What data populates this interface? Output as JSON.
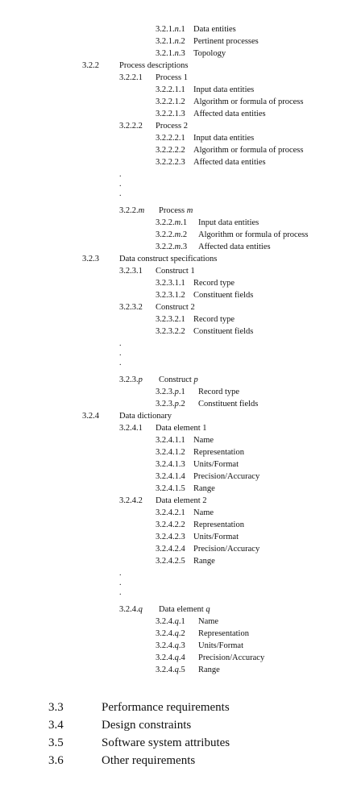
{
  "rows": [
    {
      "num": "3.2.1.n.1",
      "text": "Data entities"
    },
    {
      "num": "3.2.1.n.2",
      "text": "Pertinent processes"
    },
    {
      "num": "3.2.1.n.3",
      "text": "Topology"
    },
    {
      "num": "3.2.2",
      "text": "Process descriptions"
    },
    {
      "num": "3.2.2.1",
      "text": "Process 1"
    },
    {
      "num": "3.2.2.1.1",
      "text": "Input data entities"
    },
    {
      "num": "3.2.2.1.2",
      "text": "Algorithm or formula of process"
    },
    {
      "num": "3.2.2.1.3",
      "text": "Affected data entities"
    },
    {
      "num": "3.2.2.2",
      "text": "Process 2"
    },
    {
      "num": "3.2.2.2.1",
      "text": "Input data entities"
    },
    {
      "num": "3.2.2.2.2",
      "text": "Algorithm or formula of process"
    },
    {
      "num": "3.2.2.2.3",
      "text": "Affected data entities"
    },
    {
      "num": "3.2.2.m",
      "text": "Process m"
    },
    {
      "num": "3.2.2.m.1",
      "text": "Input data entities"
    },
    {
      "num": "3.2.2.m.2",
      "text": "Algorithm or formula of process"
    },
    {
      "num": "3.2.2.m.3",
      "text": "Affected data entities"
    },
    {
      "num": "3.2.3",
      "text": "Data construct specifications"
    },
    {
      "num": "3.2.3.1",
      "text": "Construct 1"
    },
    {
      "num": "3.2.3.1.1",
      "text": "Record type"
    },
    {
      "num": "3.2.3.1.2",
      "text": "Constituent fields"
    },
    {
      "num": "3.2.3.2",
      "text": "Construct 2"
    },
    {
      "num": "3.2.3.2.1",
      "text": "Record type"
    },
    {
      "num": "3.2.3.2.2",
      "text": "Constituent fields"
    },
    {
      "num": "3.2.3.p",
      "text": "Construct p"
    },
    {
      "num": "3.2.3.p.1",
      "text": "Record type"
    },
    {
      "num": "3.2.3.p.2",
      "text": "Constituent fields"
    },
    {
      "num": "3.2.4",
      "text": "Data dictionary"
    },
    {
      "num": "3.2.4.1",
      "text": "Data element 1"
    },
    {
      "num": "3.2.4.1.1",
      "text": "Name"
    },
    {
      "num": "3.2.4.1.2",
      "text": "Representation"
    },
    {
      "num": "3.2.4.1.3",
      "text": "Units/Format"
    },
    {
      "num": "3.2.4.1.4",
      "text": "Precision/Accuracy"
    },
    {
      "num": "3.2.4.1.5",
      "text": "Range"
    },
    {
      "num": "3.2.4.2",
      "text": "Data element 2"
    },
    {
      "num": "3.2.4.2.1",
      "text": "Name"
    },
    {
      "num": "3.2.4.2.2",
      "text": "Representation"
    },
    {
      "num": "3.2.4.2.3",
      "text": "Units/Format"
    },
    {
      "num": "3.2.4.2.4",
      "text": "Precision/Accuracy"
    },
    {
      "num": "3.2.4.2.5",
      "text": "Range"
    },
    {
      "num": "3.2.4.q",
      "text": "Data element q"
    },
    {
      "num": "3.2.4.q.1",
      "text": "Name"
    },
    {
      "num": "3.2.4.q.2",
      "text": "Representation"
    },
    {
      "num": "3.2.4.q.3",
      "text": "Units/Format"
    },
    {
      "num": "3.2.4.q.4",
      "text": "Precision/Accuracy"
    },
    {
      "num": "3.2.4.q.5",
      "text": "Range"
    }
  ],
  "sections": [
    {
      "num": "3.3",
      "text": "Performance requirements"
    },
    {
      "num": "3.4",
      "text": "Design constraints"
    },
    {
      "num": "3.5",
      "text": "Software system attributes"
    },
    {
      "num": "3.6",
      "text": "Other requirements"
    }
  ]
}
